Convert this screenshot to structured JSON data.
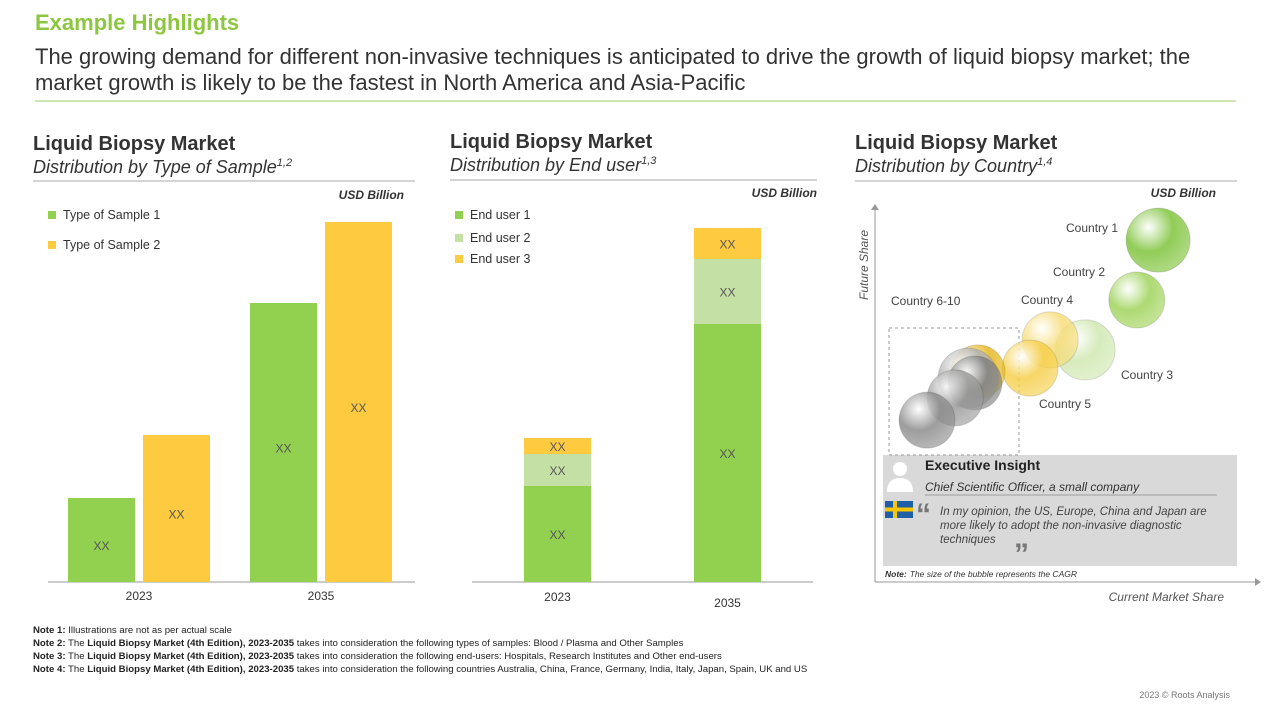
{
  "header": {
    "title": "Example Highlights",
    "subtitle": "The growing demand for different non-invasive techniques is anticipated to drive the growth of liquid biopsy market; the market growth is likely to be the fastest in North America and Asia-Pacific"
  },
  "chart_data": [
    {
      "type": "bar",
      "title": "Liquid Biopsy Market",
      "subtitle": "Distribution by Type of Sample",
      "subtitle_sup": "1,2",
      "unit": "USD Billion",
      "categories": [
        "2023",
        "2035"
      ],
      "ylim": [
        0,
        40
      ],
      "series": [
        {
          "name": "Type of Sample 1",
          "color": "#92d050",
          "values": [
            8.4,
            27.9
          ],
          "value_labels": [
            "XX",
            "XX"
          ]
        },
        {
          "name": "Type of Sample 2",
          "color": "#fdca40",
          "values": [
            14.7,
            36.0
          ],
          "value_labels": [
            "XX",
            "XX"
          ]
        }
      ]
    },
    {
      "type": "stacked_bar",
      "title": "Liquid Biopsy Market",
      "subtitle": "Distribution by End user",
      "subtitle_sup": "1,3",
      "unit": "USD Billion",
      "categories": [
        "2023",
        "2035"
      ],
      "ylim": [
        0,
        40
      ],
      "series": [
        {
          "name": "End user 1",
          "color": "#92d050",
          "values": [
            9.6,
            25.8
          ],
          "value_labels": [
            "XX",
            "XX"
          ]
        },
        {
          "name": "End user 2",
          "color": "#c5e0a5",
          "values": [
            3.2,
            6.5
          ],
          "value_labels": [
            "XX",
            "XX"
          ]
        },
        {
          "name": "End user 3",
          "color": "#fdca40",
          "values": [
            1.6,
            3.1
          ],
          "value_labels": [
            "XX",
            "XX"
          ]
        }
      ]
    },
    {
      "type": "bubble",
      "title": "Liquid Biopsy Market",
      "subtitle": "Distribution by Country",
      "subtitle_sup": "1,4",
      "unit": "USD Billion",
      "x_label": "Current Market Share",
      "y_label": "Future Share",
      "note_label": "Note:",
      "note": "The size of the bubble represents the CAGR",
      "xlim": [
        0,
        100
      ],
      "ylim": [
        0,
        100
      ],
      "series": [
        {
          "name": "Country 1",
          "color": "#7ec33a",
          "x": [
            74.5
          ],
          "y": [
            91.9
          ],
          "size": [
            32
          ]
        },
        {
          "name": "Country 2",
          "color": "#9fd35a",
          "x": [
            68.9
          ],
          "y": [
            75.8
          ],
          "size": [
            28
          ]
        },
        {
          "name": "Country 3",
          "color": "#cfe8b0",
          "x": [
            55.3
          ],
          "y": [
            62.4
          ],
          "size": [
            30
          ]
        },
        {
          "name": "Country 4",
          "color": "#f7dc78",
          "x": [
            46.1
          ],
          "y": [
            65.1
          ],
          "size": [
            28
          ]
        },
        {
          "name": "Country 5",
          "color": "#f5cf4a",
          "x": [
            40.8
          ],
          "y": [
            57.5
          ],
          "size": [
            28
          ]
        },
        {
          "name": "Country 6-10",
          "color": "#9a9a9a",
          "colors": [
            "#e6b820",
            "#b0b0b0",
            "#808080",
            "#9a9a9a",
            "#8c8c8c"
          ],
          "x": [
            27.1,
            24.5,
            26.3,
            21.1,
            13.7
          ],
          "y": [
            56.5,
            54.8,
            53.5,
            49.5,
            43.5
          ],
          "size": [
            27,
            30,
            27,
            28,
            28
          ]
        }
      ]
    }
  ],
  "insight": {
    "title": "Executive Insight",
    "role": "Chief Scientific Officer, a small company",
    "quote_open": "“",
    "quote": "In my opinion, the US, Europe, China and Japan are more likely to adopt the non-invasive diagnostic techniques",
    "quote_close": "”"
  },
  "notes": [
    {
      "label": "Note 1:",
      "text": "Illustrations are not as per actual scale"
    },
    {
      "label": "Note 2:",
      "pre": "The",
      "bold": "Liquid Biopsy Market (4th Edition), 2023-2035",
      "text": "takes into consideration the following types of samples: Blood / Plasma and Other Samples"
    },
    {
      "label": "Note 3:",
      "pre": "The",
      "bold": "Liquid Biopsy Market (4th Edition), 2023-2035",
      "text": "takes into consideration the following end-users: Hospitals, Research Institutes and Other end-users"
    },
    {
      "label": "Note 4:",
      "pre": "The",
      "bold": "Liquid Biopsy Market (4th Edition), 2023-2035",
      "text": "takes into consideration the following countries Australia, China, France, Germany, India, Italy, Japan, Spain, UK and US"
    }
  ],
  "footer": "2023 © Roots Analysis"
}
